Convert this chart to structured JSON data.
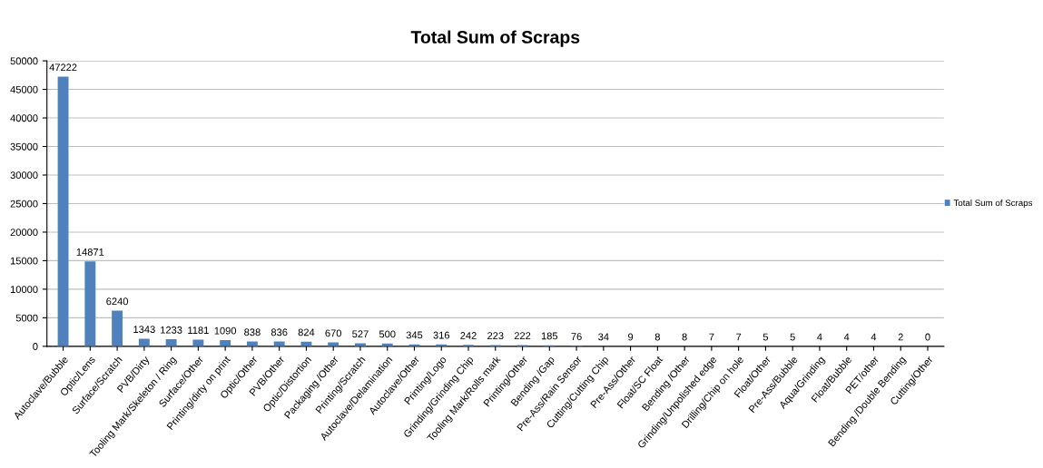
{
  "chart_data": {
    "type": "bar",
    "title": "Total Sum of Scraps",
    "categories": [
      "Autoclave/Bubble",
      "Optic/Lens",
      "Surface/Scratch",
      "PVB/Dirty",
      "Tooling Mark/Skeleton / Ring",
      "Surface/Other",
      "Printing/dirty on print",
      "Optic/Other",
      "PVB/Other",
      "Optic/Distortion",
      "Packaging /Other",
      "Printing/Scratch",
      "Autoclave/Delamination",
      "Autoclave/Other",
      "Printing/Logo",
      "Grinding/Grinding Chip",
      "Tooling Mark/Rolls mark",
      "Printing/Other",
      "Bending /Gap",
      "Pre-Ass/Rain Sensor",
      "Cutting/Cutting Chip",
      "Pre-Ass/Other",
      "Float/SC Float",
      "Bending /Other",
      "Grinding/Unpolished edge",
      "Drilling/Chip on hole",
      "Float/Other",
      "Pre-Ass/Bubble",
      "Aqua/Grinding",
      "Float/Bubble",
      "PET/other",
      "Bending /Double Bending",
      "Cutting/Other"
    ],
    "series": [
      {
        "name": "Total Sum of Scraps",
        "color": "#4f81bd",
        "values": [
          47222,
          14871,
          6240,
          1343,
          1233,
          1181,
          1090,
          838,
          836,
          824,
          670,
          527,
          500,
          345,
          316,
          242,
          223,
          222,
          185,
          76,
          34,
          9,
          8,
          8,
          7,
          7,
          5,
          5,
          4,
          4,
          4,
          2,
          0
        ]
      }
    ],
    "ylim": [
      0,
      50000
    ],
    "yticks": [
      0,
      5000,
      10000,
      15000,
      20000,
      25000,
      30000,
      35000,
      40000,
      45000,
      50000
    ],
    "grid": "y",
    "legend": "right",
    "data_labels": true
  }
}
